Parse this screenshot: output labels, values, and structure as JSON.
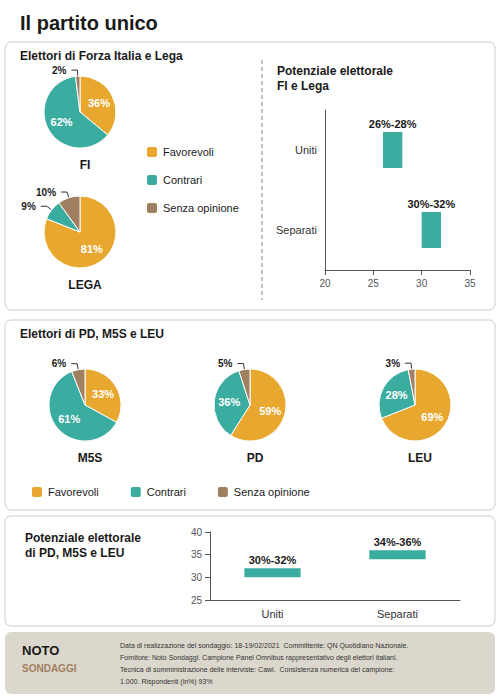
{
  "title": "Il partito unico",
  "annotations": [
    "Elettori di Forza Italia e Lega",
    "Elettori di PD, M5S e LEU",
    "NOTO",
    "SONDAGGI",
    "Data di realizzazione del sondaggio: 18-19/02/2021  Committente: QN Quotidiano Nazionale.\nFornitore: Noto Sondaggi. Campione Panel Omnibus rappresentativo degli elettori italiani.\nTecnica di somministrazione delle interviste: Cawi.  Consistenza numerica del campione:\n1.000. Rispondenti (in%) 93%"
  ],
  "chart_data": [
    {
      "type": "pie",
      "title": "FI",
      "categories": [
        "Favorevoli",
        "Contrari",
        "Senza opinione"
      ],
      "values": [
        36,
        62,
        2
      ],
      "value_labels": [
        "36%",
        "62%",
        "2%"
      ],
      "colors": [
        "#e8a830",
        "#3aada0",
        "#a08060"
      ],
      "data_labels": true,
      "legend": "right"
    },
    {
      "type": "pie",
      "title": "LEGA",
      "categories": [
        "Favorevoli",
        "Contrari",
        "Senza opinione"
      ],
      "values": [
        81,
        9,
        10
      ],
      "value_labels": [
        "81%",
        "9%",
        "10%"
      ],
      "colors": [
        "#e8a830",
        "#3aada0",
        "#a08060"
      ],
      "data_labels": true
    },
    {
      "type": "bar",
      "title": "Potenziale elettorale\nFI e Lega",
      "orientation": "horizontal",
      "categories": [
        "Uniti",
        "Separati"
      ],
      "low": [
        26,
        30
      ],
      "high": [
        28,
        32
      ],
      "value_labels": [
        "26%-28%",
        "30%-32%"
      ],
      "color": "#3aada0",
      "xlim": [
        20,
        35
      ],
      "xticks": [
        20,
        25,
        30,
        35
      ],
      "grid": false,
      "data_labels": true
    },
    {
      "type": "pie",
      "title": "M5S",
      "categories": [
        "Favorevoli",
        "Contrari",
        "Senza opinione"
      ],
      "values": [
        33,
        61,
        6
      ],
      "value_labels": [
        "33%",
        "61%",
        "6%"
      ],
      "colors": [
        "#e8a830",
        "#3aada0",
        "#a08060"
      ],
      "data_labels": true,
      "legend": "bottom"
    },
    {
      "type": "pie",
      "title": "PD",
      "categories": [
        "Favorevoli",
        "Contrari",
        "Senza opinione"
      ],
      "values": [
        59,
        36,
        5
      ],
      "value_labels": [
        "59%",
        "36%",
        "5%"
      ],
      "colors": [
        "#e8a830",
        "#3aada0",
        "#a08060"
      ],
      "data_labels": true
    },
    {
      "type": "pie",
      "title": "LEU",
      "categories": [
        "Favorevoli",
        "Contrari",
        "Senza opinione"
      ],
      "values": [
        69,
        28,
        3
      ],
      "value_labels": [
        "69%",
        "28%",
        "3%"
      ],
      "colors": [
        "#e8a830",
        "#3aada0",
        "#a08060"
      ],
      "data_labels": true
    },
    {
      "type": "bar",
      "title": "Potenziale elettorale\ndi PD, M5S e LEU",
      "categories": [
        "Uniti",
        "Separati"
      ],
      "low": [
        30,
        34
      ],
      "high": [
        32,
        36
      ],
      "value_labels": [
        "30%-32%",
        "34%-36%"
      ],
      "color": "#3aada0",
      "ylim": [
        25,
        40
      ],
      "yticks": [
        25,
        30,
        35,
        40
      ],
      "grid": false,
      "data_labels": true
    }
  ]
}
